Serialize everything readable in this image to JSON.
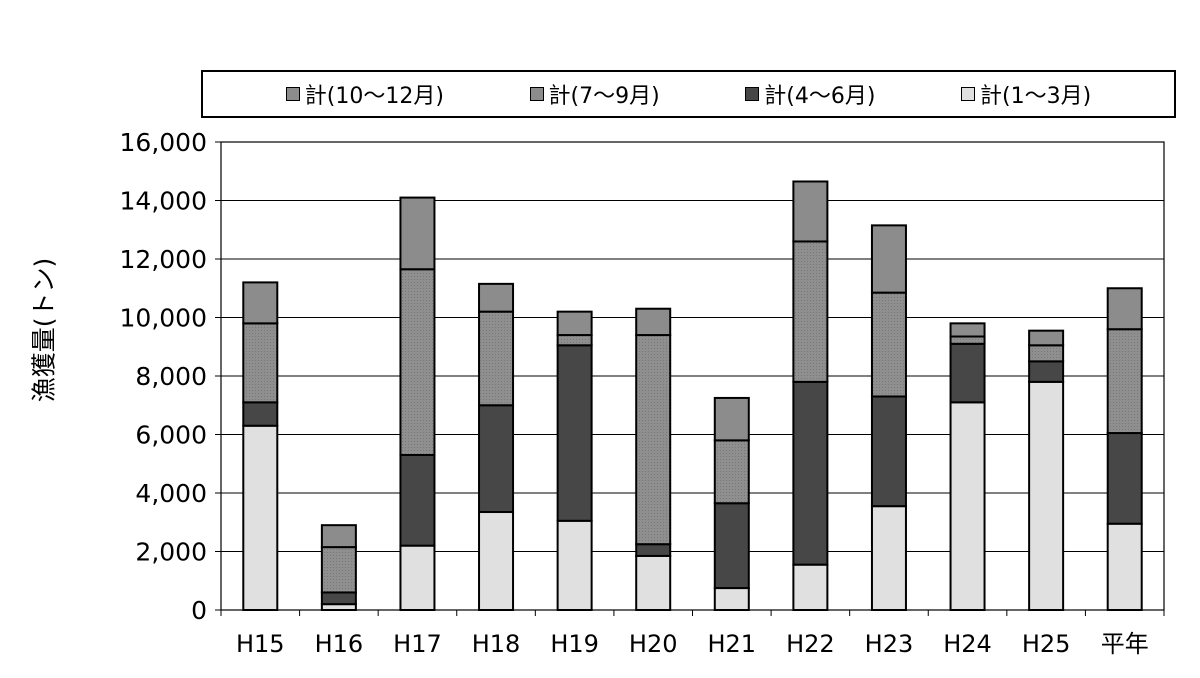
{
  "chart_data": {
    "type": "bar",
    "stacked": true,
    "ylabel": "漁獲量(トン)",
    "xlabel": "",
    "ylim": [
      0,
      16000
    ],
    "yticks": [
      "0",
      "2,000",
      "4,000",
      "6,000",
      "8,000",
      "10,000",
      "12,000",
      "14,000",
      "16,000"
    ],
    "grid": true,
    "legend_position": "top",
    "categories": [
      "H15",
      "H16",
      "H17",
      "H18",
      "H19",
      "H20",
      "H21",
      "H22",
      "H23",
      "H24",
      "H25",
      "平年"
    ],
    "series": [
      {
        "name": "計(1～3月)",
        "color": "#e0e0e0",
        "values": [
          6300,
          200,
          2200,
          3350,
          3050,
          1850,
          750,
          1550,
          3550,
          7100,
          7800,
          2950
        ]
      },
      {
        "name": "計(4～6月)",
        "color": "#474747",
        "values": [
          800,
          400,
          3100,
          3650,
          6000,
          400,
          2900,
          6250,
          3750,
          2000,
          700,
          3100
        ]
      },
      {
        "name": "計(7～9月)",
        "color": "#8c8c8c",
        "values": [
          2700,
          1550,
          6350,
          3200,
          350,
          7150,
          2150,
          4800,
          3550,
          250,
          550,
          3550
        ]
      },
      {
        "name": "計(10～12月)",
        "color": "#8c8c8c",
        "values": [
          1400,
          750,
          2450,
          950,
          800,
          900,
          1450,
          2050,
          2300,
          450,
          500,
          1400
        ]
      }
    ],
    "legend_order": [
      "計(10～12月)",
      "計(7～9月)",
      "計(4～6月)",
      "計(1～3月)"
    ]
  }
}
